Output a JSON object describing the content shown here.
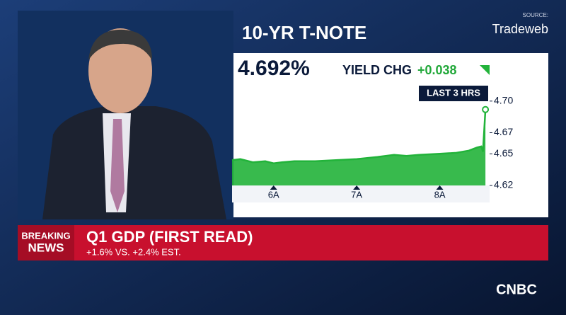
{
  "chart_data": {
    "type": "area",
    "title": "10-YR T-NOTE",
    "source_label": "SOURCE:",
    "source": "Tradeweb",
    "last_value": "4.692%",
    "change_label": "YIELD CHG",
    "change": "+0.038",
    "period": "LAST 3 HRS",
    "x": [
      5.5,
      5.6,
      5.75,
      5.9,
      6.0,
      6.1,
      6.25,
      6.5,
      6.75,
      7.0,
      7.25,
      7.45,
      7.6,
      7.75,
      8.0,
      8.2,
      8.35,
      8.45,
      8.5,
      8.52,
      8.55
    ],
    "series": [
      {
        "color": "#22b33a",
        "values": [
          4.644,
          4.645,
          4.642,
          4.643,
          4.641,
          4.642,
          4.643,
          4.643,
          4.644,
          4.645,
          4.647,
          4.649,
          4.648,
          4.649,
          4.65,
          4.651,
          4.653,
          4.656,
          4.657,
          4.652,
          4.692
        ]
      }
    ],
    "xlim": [
      5.5,
      8.6
    ],
    "xticks": [
      {
        "value": 6,
        "label": "6A"
      },
      {
        "value": 7,
        "label": "7A"
      },
      {
        "value": 8,
        "label": "8A"
      }
    ],
    "ylim": [
      4.62,
      4.72
    ],
    "yticks": [
      4.62,
      4.65,
      4.67,
      {
        "value": 4.7,
        "label": "4.70"
      }
    ]
  },
  "banner": {
    "tag": [
      "BREAKING",
      "NEWS"
    ],
    "headline": "Q1 GDP (FIRST READ)",
    "subline": "+1.6% VS. +2.4% EST."
  },
  "logo": "CNBC"
}
